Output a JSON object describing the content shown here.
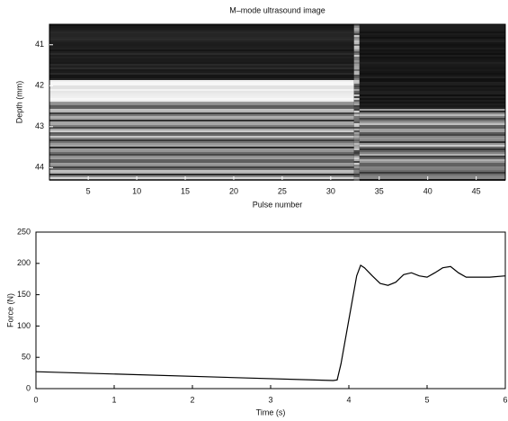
{
  "chart_data": [
    {
      "type": "image",
      "title": "M–mode ultrasound image",
      "xlabel": "Pulse number",
      "ylabel": "Depth (mm)",
      "xlim": [
        1,
        48
      ],
      "ylim": [
        40.5,
        44.3
      ],
      "y_inverted": true,
      "xticks": [
        5,
        10,
        15,
        20,
        25,
        30,
        35,
        40,
        45
      ],
      "yticks": [
        41,
        42,
        43,
        44
      ]
    },
    {
      "type": "line",
      "xlabel": "Time (s)",
      "ylabel": "Force (N)",
      "xlim": [
        0,
        6
      ],
      "ylim": [
        0,
        250
      ],
      "xticks": [
        0,
        1,
        2,
        3,
        4,
        5,
        6
      ],
      "yticks": [
        0,
        50,
        100,
        150,
        200,
        250
      ],
      "color": "#000000",
      "x": [
        0,
        3.8,
        3.85,
        3.9,
        4.0,
        4.1,
        4.15,
        4.2,
        4.3,
        4.4,
        4.5,
        4.6,
        4.7,
        4.8,
        4.9,
        5.0,
        5.1,
        5.2,
        5.3,
        5.4,
        5.5,
        5.6,
        5.8,
        6.0
      ],
      "values": [
        27,
        13,
        14,
        40,
        110,
        180,
        197,
        193,
        180,
        168,
        165,
        170,
        182,
        185,
        180,
        178,
        185,
        193,
        195,
        185,
        178,
        178,
        178,
        180
      ]
    }
  ]
}
